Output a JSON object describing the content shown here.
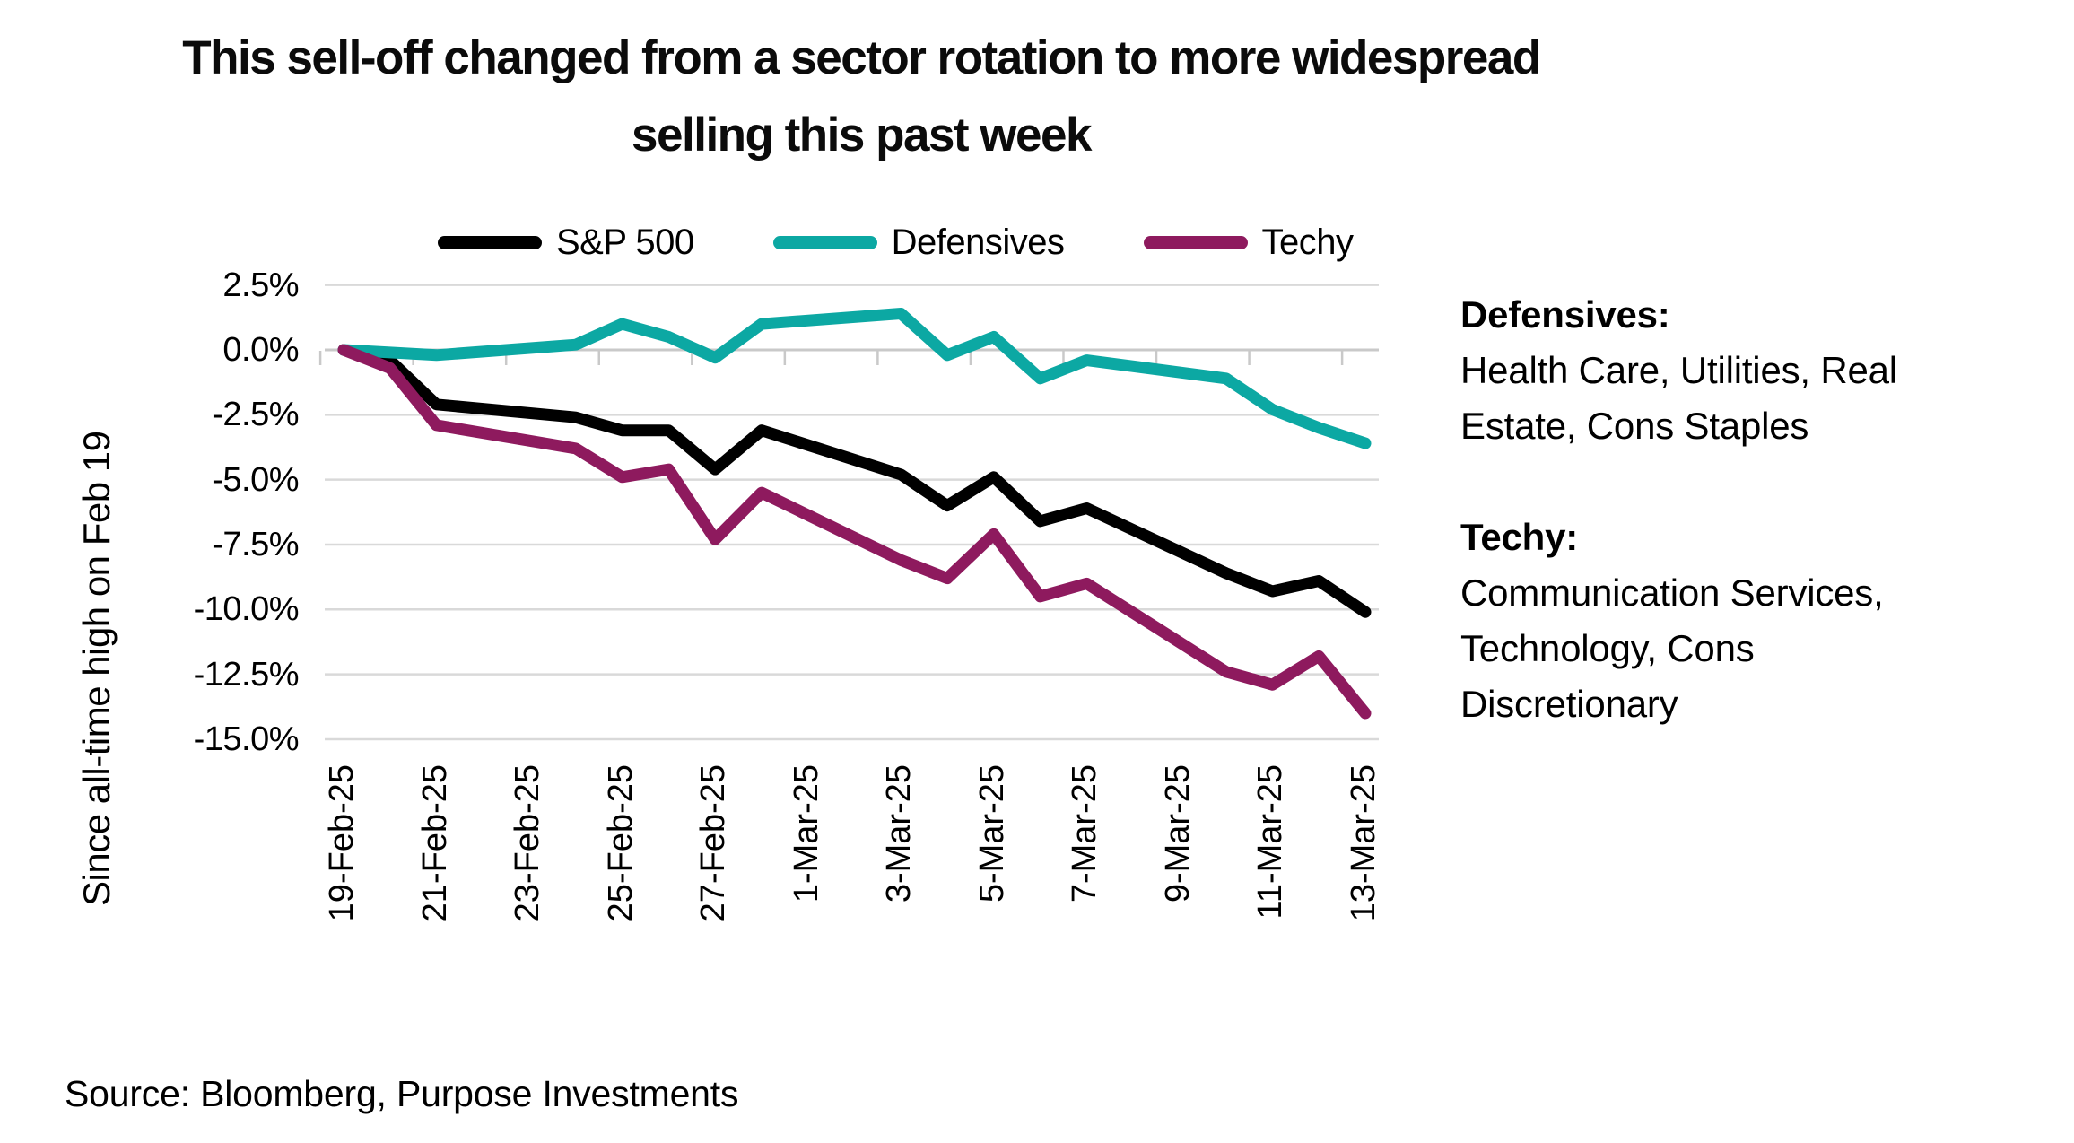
{
  "title": {
    "line1": "This sell-off changed from a sector rotation to more widespread",
    "line2": "selling this past week"
  },
  "legend": {
    "items": [
      {
        "label": "S&P 500",
        "color": "#000000"
      },
      {
        "label": "Defensives",
        "color": "#0CA8A3"
      },
      {
        "label": "Techy",
        "color": "#8E1A5E"
      }
    ]
  },
  "chart_data": {
    "type": "line",
    "title": "This sell-off changed from a sector rotation to more widespread selling this past week",
    "ylabel": "Since all-time high on Feb 19",
    "xlabel": "",
    "grid": "horizontal",
    "legend_position": "top",
    "ylim": [
      -15.0,
      2.5
    ],
    "x": [
      "19-Feb-25",
      "20-Feb-25",
      "21-Feb-25",
      "24-Feb-25",
      "25-Feb-25",
      "26-Feb-25",
      "27-Feb-25",
      "28-Feb-25",
      "3-Mar-25",
      "4-Mar-25",
      "5-Mar-25",
      "6-Mar-25",
      "7-Mar-25",
      "10-Mar-25",
      "11-Mar-25",
      "12-Mar-25",
      "13-Mar-25"
    ],
    "x_day_offsets": [
      0,
      1,
      2,
      5,
      6,
      7,
      8,
      9,
      12,
      13,
      14,
      15,
      16,
      19,
      20,
      21,
      22
    ],
    "series": [
      {
        "name": "S&P 500",
        "color": "#000000",
        "values": [
          0.0,
          -0.4,
          -2.1,
          -2.6,
          -3.1,
          -3.1,
          -4.6,
          -3.1,
          -4.8,
          -6.0,
          -4.9,
          -6.6,
          -6.1,
          -8.6,
          -9.3,
          -8.9,
          -10.1
        ]
      },
      {
        "name": "Defensives",
        "color": "#0CA8A3",
        "values": [
          0.0,
          -0.1,
          -0.2,
          0.2,
          1.0,
          0.5,
          -0.3,
          1.0,
          1.4,
          -0.2,
          0.5,
          -1.1,
          -0.4,
          -1.1,
          -2.3,
          -3.0,
          -3.6
        ]
      },
      {
        "name": "Techy",
        "color": "#8E1A5E",
        "values": [
          0.0,
          -0.7,
          -2.9,
          -3.8,
          -4.9,
          -4.6,
          -7.3,
          -5.5,
          -8.1,
          -8.8,
          -7.1,
          -9.5,
          -9.0,
          -12.4,
          -12.9,
          -11.8,
          -14.0
        ]
      }
    ],
    "y_ticks": [
      {
        "label": "2.5%",
        "value": 2.5
      },
      {
        "label": "0.0%",
        "value": 0.0
      },
      {
        "label": "-2.5%",
        "value": -2.5
      },
      {
        "label": "-5.0%",
        "value": -5.0
      },
      {
        "label": "-7.5%",
        "value": -7.5
      },
      {
        "label": "-10.0%",
        "value": -10.0
      },
      {
        "label": "-12.5%",
        "value": -12.5
      },
      {
        "label": "-15.0%",
        "value": -15.0
      }
    ],
    "x_ticks": [
      {
        "label": "19-Feb-25",
        "day": 0
      },
      {
        "label": "21-Feb-25",
        "day": 2
      },
      {
        "label": "23-Feb-25",
        "day": 4
      },
      {
        "label": "25-Feb-25",
        "day": 6
      },
      {
        "label": "27-Feb-25",
        "day": 8
      },
      {
        "label": "1-Mar-25",
        "day": 10
      },
      {
        "label": "3-Mar-25",
        "day": 12
      },
      {
        "label": "5-Mar-25",
        "day": 14
      },
      {
        "label": "7-Mar-25",
        "day": 16
      },
      {
        "label": "9-Mar-25",
        "day": 18
      },
      {
        "label": "11-Mar-25",
        "day": 20
      },
      {
        "label": "13-Mar-25",
        "day": 22
      }
    ]
  },
  "annotation": {
    "defensives_heading": "Defensives:",
    "defensives_lines": [
      "Health Care, Utilities, Real",
      "Estate, Cons Staples"
    ],
    "techy_heading": "Techy:",
    "techy_lines": [
      "Communication Services,",
      "Technology, Cons",
      "Discretionary"
    ]
  },
  "source": "Source: Bloomberg, Purpose Investments",
  "colors": {
    "gridline": "#D9D9D9",
    "axis": "#C9C9C9",
    "text": "#000000",
    "background": "#FFFFFF"
  }
}
